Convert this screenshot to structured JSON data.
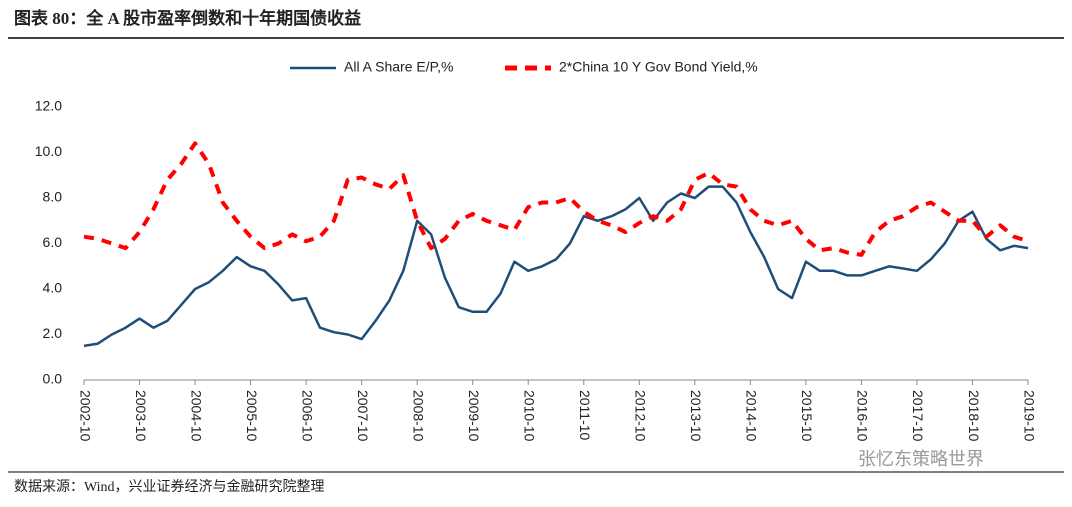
{
  "chart_data": {
    "type": "line",
    "title": "图表 80：全 A 股市盈率倒数和十年期国债收益",
    "source": "数据来源：Wind，兴业证券经济与金融研究院整理",
    "watermark": "张忆东策略世界",
    "x": [
      "2002-10",
      "2003-01",
      "2003-04",
      "2003-07",
      "2003-10",
      "2004-01",
      "2004-04",
      "2004-07",
      "2004-10",
      "2005-01",
      "2005-04",
      "2005-07",
      "2005-10",
      "2006-01",
      "2006-04",
      "2006-07",
      "2006-10",
      "2007-01",
      "2007-04",
      "2007-07",
      "2007-10",
      "2008-01",
      "2008-04",
      "2008-07",
      "2008-10",
      "2009-01",
      "2009-04",
      "2009-07",
      "2009-10",
      "2010-01",
      "2010-04",
      "2010-07",
      "2010-10",
      "2011-01",
      "2011-04",
      "2011-07",
      "2011-10",
      "2012-01",
      "2012-04",
      "2012-07",
      "2012-10",
      "2013-01",
      "2013-04",
      "2013-07",
      "2013-10",
      "2014-01",
      "2014-04",
      "2014-07",
      "2014-10",
      "2015-01",
      "2015-04",
      "2015-07",
      "2015-10",
      "2016-01",
      "2016-04",
      "2016-07",
      "2016-10",
      "2017-01",
      "2017-04",
      "2017-07",
      "2017-10",
      "2018-01",
      "2018-04",
      "2018-07",
      "2018-10",
      "2019-01",
      "2019-04",
      "2019-07",
      "2019-10"
    ],
    "series": [
      {
        "name": "All A Share E/P,%",
        "color": "#1f4e79",
        "dashed": false,
        "values": [
          1.5,
          1.6,
          2.0,
          2.3,
          2.7,
          2.3,
          2.6,
          3.3,
          4.0,
          4.3,
          4.8,
          5.4,
          5.0,
          4.8,
          4.2,
          3.5,
          3.6,
          2.3,
          2.1,
          2.0,
          1.8,
          2.6,
          3.5,
          4.8,
          7.0,
          6.4,
          4.5,
          3.2,
          3.0,
          3.0,
          3.8,
          5.2,
          4.8,
          5.0,
          5.3,
          6.0,
          7.2,
          7.0,
          7.2,
          7.5,
          8.0,
          7.0,
          7.8,
          8.2,
          8.0,
          8.5,
          8.5,
          7.8,
          6.5,
          5.4,
          4.0,
          3.6,
          5.2,
          4.8,
          4.8,
          4.6,
          4.6,
          4.8,
          5.0,
          4.9,
          4.8,
          5.3,
          6.0,
          7.0,
          7.4,
          6.2,
          5.7,
          5.9,
          5.8
        ]
      },
      {
        "name": "2*China 10 Y Gov Bond Yield,%",
        "color": "#ff0000",
        "dashed": true,
        "values": [
          6.3,
          6.2,
          6.0,
          5.8,
          6.5,
          7.5,
          8.8,
          9.5,
          10.4,
          9.5,
          7.8,
          7.0,
          6.3,
          5.8,
          6.0,
          6.4,
          6.1,
          6.3,
          7.0,
          8.8,
          8.9,
          8.6,
          8.4,
          9.0,
          7.0,
          5.8,
          6.2,
          7.0,
          7.3,
          7.0,
          6.8,
          6.6,
          7.6,
          7.8,
          7.8,
          8.0,
          7.4,
          7.0,
          6.8,
          6.5,
          6.9,
          7.2,
          7.0,
          7.5,
          8.8,
          9.1,
          8.6,
          8.5,
          7.5,
          7.0,
          6.8,
          7.0,
          6.2,
          5.7,
          5.8,
          5.6,
          5.5,
          6.5,
          7.0,
          7.2,
          7.6,
          7.8,
          7.4,
          7.0,
          7.0,
          6.3,
          6.8,
          6.3,
          6.1
        ]
      }
    ],
    "xticks": [
      "2002-10",
      "2003-10",
      "2004-10",
      "2005-10",
      "2006-10",
      "2007-10",
      "2008-10",
      "2009-10",
      "2010-10",
      "2011-10",
      "2012-10",
      "2013-10",
      "2014-10",
      "2015-10",
      "2016-10",
      "2017-10",
      "2018-10",
      "2019-10"
    ],
    "ylim": [
      0,
      12
    ],
    "yticks": [
      {
        "value": 0,
        "label": "0.0"
      },
      {
        "value": 2,
        "label": "2.0"
      },
      {
        "value": 4,
        "label": "4.0"
      },
      {
        "value": 6,
        "label": "6.0"
      },
      {
        "value": 8,
        "label": "8.0"
      },
      {
        "value": 10,
        "label": "10.0"
      },
      {
        "value": 12,
        "label": "12.0"
      }
    ],
    "grid": false
  }
}
